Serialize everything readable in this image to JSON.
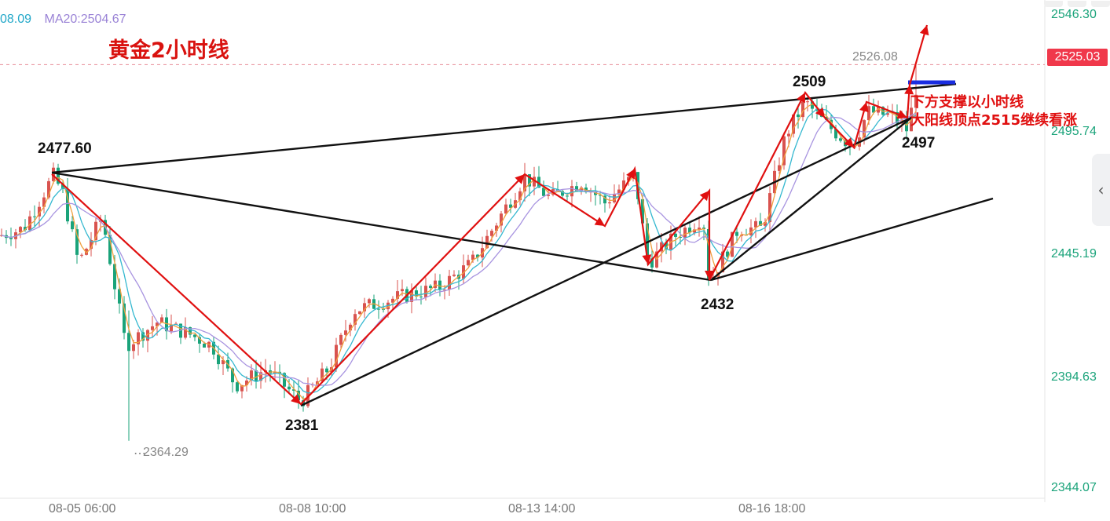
{
  "legend": {
    "ma_fragment": "08.09",
    "ma20": "MA20:2504.67",
    "ma_fragment_color": "#23a8c9",
    "ma20_color": "#9a83d6"
  },
  "title": "黄金2小时线",
  "price_axis": {
    "ticks": [
      "2546.30",
      "2495.74",
      "2445.19",
      "2394.63",
      "2344.07"
    ],
    "current_price": "2525.03",
    "current_price_color": "#f0384b"
  },
  "date_axis": {
    "ticks": [
      "08-05 06:00",
      "08-08 10:00",
      "08-13 14:00",
      "08-16 18:00"
    ]
  },
  "markers": {
    "high_marker": "2526.08",
    "low_marker": "2364.29"
  },
  "labels": {
    "l1": "2477.60",
    "l2": "2381",
    "l3": "2432",
    "l4": "2509",
    "l5": "2497"
  },
  "annotation": {
    "line1": "下方支撑以小时线",
    "line2": "大阳线顶点2515继续看涨"
  },
  "colors": {
    "up": "#d9534f",
    "down": "#1aa37a",
    "ma_fast": "#f0a040",
    "ma_mid": "#35b8d0",
    "ma_slow": "#a894e0",
    "wave": "#e01010",
    "trend": "#111111",
    "support_bar": "#1a2de0"
  },
  "chart_data": {
    "type": "candlestick",
    "title": "黄金2小时线",
    "ylim": [
      2335,
      2560
    ],
    "price_ticks": [
      2546.3,
      2495.74,
      2445.19,
      2394.63,
      2344.07
    ],
    "pattern_points": [
      {
        "label": "2477.60",
        "value": 2477.6
      },
      {
        "label": "2381",
        "value": 2381
      },
      {
        "label": "2432",
        "value": 2432
      },
      {
        "label": "2509",
        "value": 2509
      },
      {
        "label": "2497",
        "value": 2497
      }
    ],
    "current_price": 2525.03,
    "high_marker": 2526.08,
    "low_marker": 2364.29,
    "ma20": 2504.67,
    "x_ticks": [
      "08-05 06:00",
      "08-08 10:00",
      "08-13 14:00",
      "08-16 18:00"
    ]
  }
}
